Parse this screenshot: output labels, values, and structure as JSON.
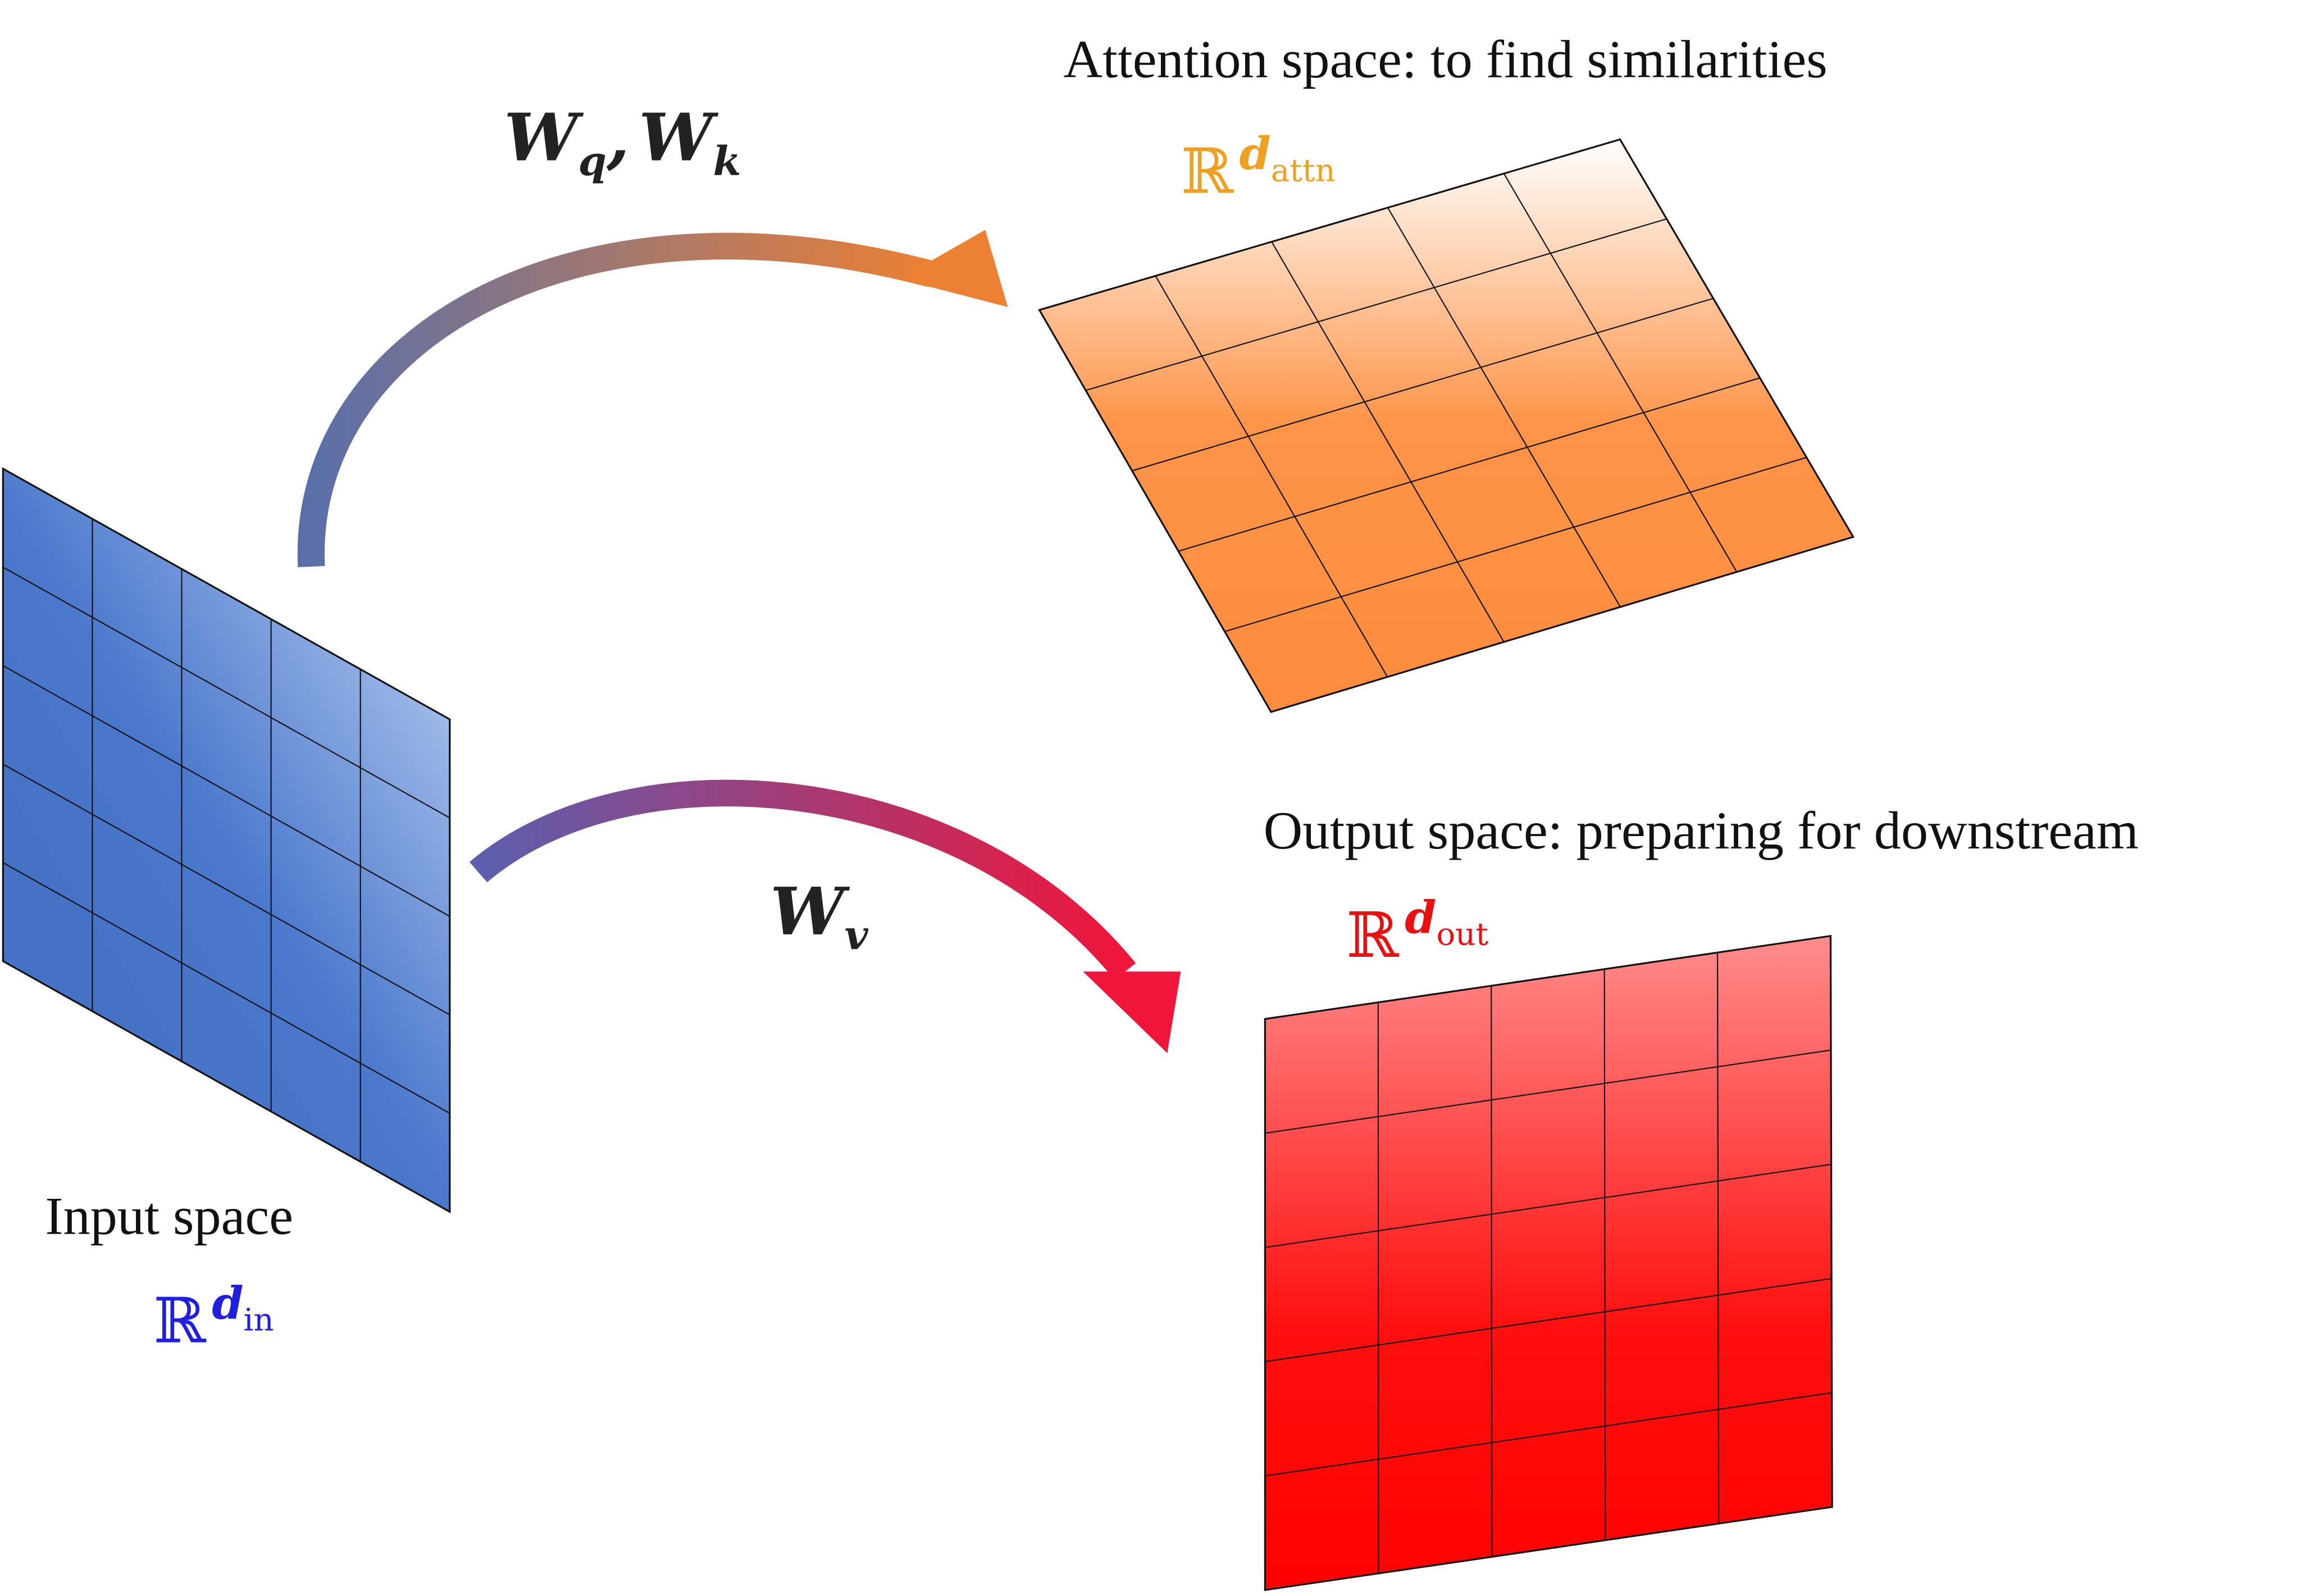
{
  "spaces": [
    {
      "title": "Input space",
      "symbol": "ℝ",
      "exponent": "d",
      "subscript": "in"
    },
    {
      "title": "Attention space: to find similarities",
      "symbol": "ℝ",
      "exponent": "d",
      "subscript": "attn"
    },
    {
      "title": "Output space: preparing for downstream",
      "symbol": "ℝ",
      "exponent": "d",
      "subscript": "out"
    }
  ],
  "arrows": [
    {
      "terms": [
        {
          "base": "W",
          "sub": "q"
        },
        {
          "base": "W",
          "sub": "k"
        }
      ],
      "separator": ","
    },
    {
      "terms": [
        {
          "base": "W",
          "sub": "v"
        }
      ]
    }
  ]
}
